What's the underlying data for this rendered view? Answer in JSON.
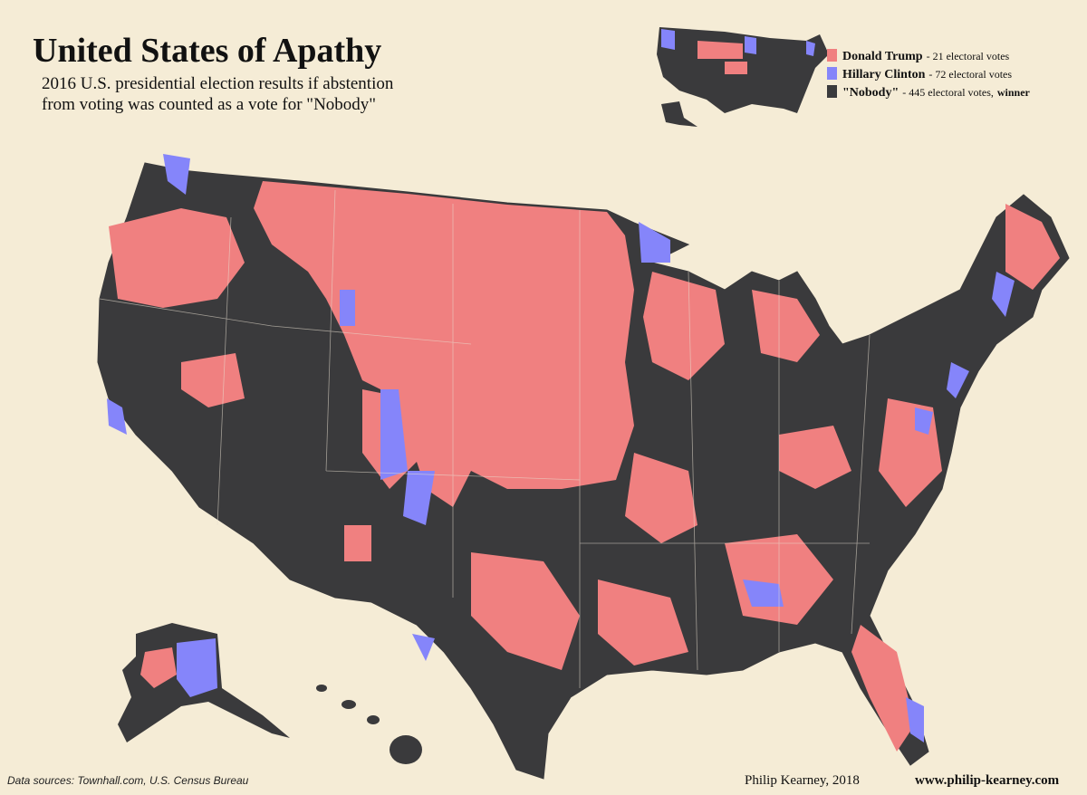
{
  "header": {
    "title": "United States of Apathy",
    "subtitle": [
      "2016 U.S. presidential election results if abstention",
      "from voting was counted as a vote for \"Nobody\""
    ]
  },
  "legend": [
    {
      "name": "Donald Trump",
      "detail": "- 21 electoral votes",
      "color": "#f08080"
    },
    {
      "name": "Hillary Clinton",
      "detail": "- 72 electoral votes",
      "color": "#8585fa"
    },
    {
      "name": "\"Nobody\"",
      "detail": "- 445 electoral votes,",
      "note": "winner",
      "color": "#3a3a3c"
    }
  ],
  "footer": {
    "sources": "Data sources:  Townhall.com, U.S. Census Bureau",
    "author": "Philip Kearney, 2018",
    "website": "www.philip-kearney.com"
  }
}
